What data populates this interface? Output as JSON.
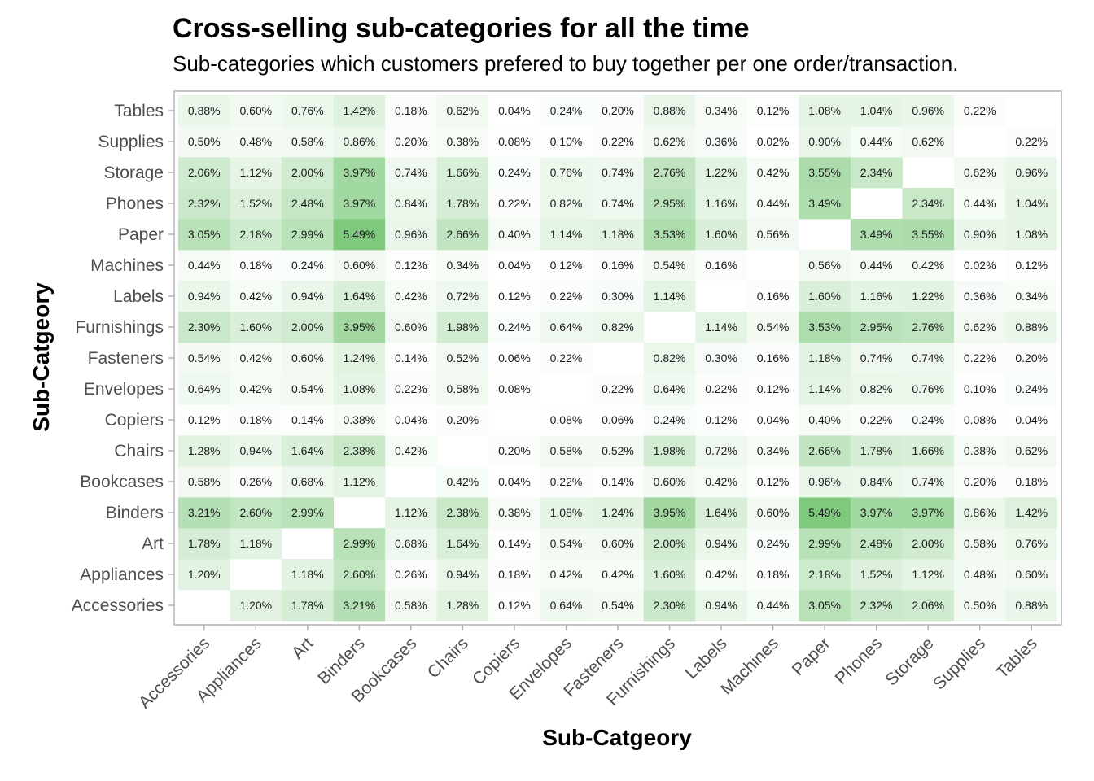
{
  "chart_data": {
    "type": "heatmap",
    "title": "Cross-selling sub-categories for all the time",
    "subtitle": "Sub-categories which customers prefered to buy together per one order/transaction.",
    "xlabel": "Sub-Catgeory",
    "ylabel": "Sub-Catgeory",
    "categories": [
      "Accessories",
      "Appliances",
      "Art",
      "Binders",
      "Bookcases",
      "Chairs",
      "Copiers",
      "Envelopes",
      "Fasteners",
      "Furnishings",
      "Labels",
      "Machines",
      "Paper",
      "Phones",
      "Storage",
      "Supplies",
      "Tables"
    ],
    "value_unit": "%",
    "color_low": "#ffffff",
    "color_high": "#7fc97f",
    "values": [
      [
        null,
        1.2,
        1.78,
        3.21,
        0.58,
        1.28,
        0.12,
        0.64,
        0.54,
        2.3,
        0.94,
        0.44,
        3.05,
        2.32,
        2.06,
        0.5,
        0.88
      ],
      [
        1.2,
        null,
        1.18,
        2.6,
        0.26,
        0.94,
        0.18,
        0.42,
        0.42,
        1.6,
        0.42,
        0.18,
        2.18,
        1.52,
        1.12,
        0.48,
        0.6
      ],
      [
        1.78,
        1.18,
        null,
        2.99,
        0.68,
        1.64,
        0.14,
        0.54,
        0.6,
        2.0,
        0.94,
        0.24,
        2.99,
        2.48,
        2.0,
        0.58,
        0.76
      ],
      [
        3.21,
        2.6,
        2.99,
        null,
        1.12,
        2.38,
        0.38,
        1.08,
        1.24,
        3.95,
        1.64,
        0.6,
        5.49,
        3.97,
        3.97,
        0.86,
        1.42
      ],
      [
        0.58,
        0.26,
        0.68,
        1.12,
        null,
        0.42,
        0.04,
        0.22,
        0.14,
        0.6,
        0.42,
        0.12,
        0.96,
        0.84,
        0.74,
        0.2,
        0.18
      ],
      [
        1.28,
        0.94,
        1.64,
        2.38,
        0.42,
        null,
        0.2,
        0.58,
        0.52,
        1.98,
        0.72,
        0.34,
        2.66,
        1.78,
        1.66,
        0.38,
        0.62
      ],
      [
        0.12,
        0.18,
        0.14,
        0.38,
        0.04,
        0.2,
        null,
        0.08,
        0.06,
        0.24,
        0.12,
        0.04,
        0.4,
        0.22,
        0.24,
        0.08,
        0.04
      ],
      [
        0.64,
        0.42,
        0.54,
        1.08,
        0.22,
        0.58,
        0.08,
        null,
        0.22,
        0.64,
        0.22,
        0.12,
        1.14,
        0.82,
        0.76,
        0.1,
        0.24
      ],
      [
        0.54,
        0.42,
        0.6,
        1.24,
        0.14,
        0.52,
        0.06,
        0.22,
        null,
        0.82,
        0.3,
        0.16,
        1.18,
        0.74,
        0.74,
        0.22,
        0.2
      ],
      [
        2.3,
        1.6,
        2.0,
        3.95,
        0.6,
        1.98,
        0.24,
        0.64,
        0.82,
        null,
        1.14,
        0.54,
        3.53,
        2.95,
        2.76,
        0.62,
        0.88
      ],
      [
        0.94,
        0.42,
        0.94,
        1.64,
        0.42,
        0.72,
        0.12,
        0.22,
        0.3,
        1.14,
        null,
        0.16,
        1.6,
        1.16,
        1.22,
        0.36,
        0.34
      ],
      [
        0.44,
        0.18,
        0.24,
        0.6,
        0.12,
        0.34,
        0.04,
        0.12,
        0.16,
        0.54,
        0.16,
        null,
        0.56,
        0.44,
        0.42,
        0.02,
        0.12
      ],
      [
        3.05,
        2.18,
        2.99,
        5.49,
        0.96,
        2.66,
        0.4,
        1.14,
        1.18,
        3.53,
        1.6,
        0.56,
        null,
        3.49,
        3.55,
        0.9,
        1.08
      ],
      [
        2.32,
        1.52,
        2.48,
        3.97,
        0.84,
        1.78,
        0.22,
        0.82,
        0.74,
        2.95,
        1.16,
        0.44,
        3.49,
        null,
        2.34,
        0.44,
        1.04
      ],
      [
        2.06,
        1.12,
        2.0,
        3.97,
        0.74,
        1.66,
        0.24,
        0.76,
        0.74,
        2.76,
        1.22,
        0.42,
        3.55,
        2.34,
        null,
        0.62,
        0.96
      ],
      [
        0.5,
        0.48,
        0.58,
        0.86,
        0.2,
        0.38,
        0.08,
        0.1,
        0.22,
        0.62,
        0.36,
        0.02,
        0.9,
        0.44,
        0.62,
        null,
        0.22
      ],
      [
        0.88,
        0.6,
        0.76,
        1.42,
        0.18,
        0.62,
        0.04,
        0.24,
        0.2,
        0.88,
        0.34,
        0.12,
        1.08,
        1.04,
        0.96,
        0.22,
        null
      ]
    ]
  }
}
